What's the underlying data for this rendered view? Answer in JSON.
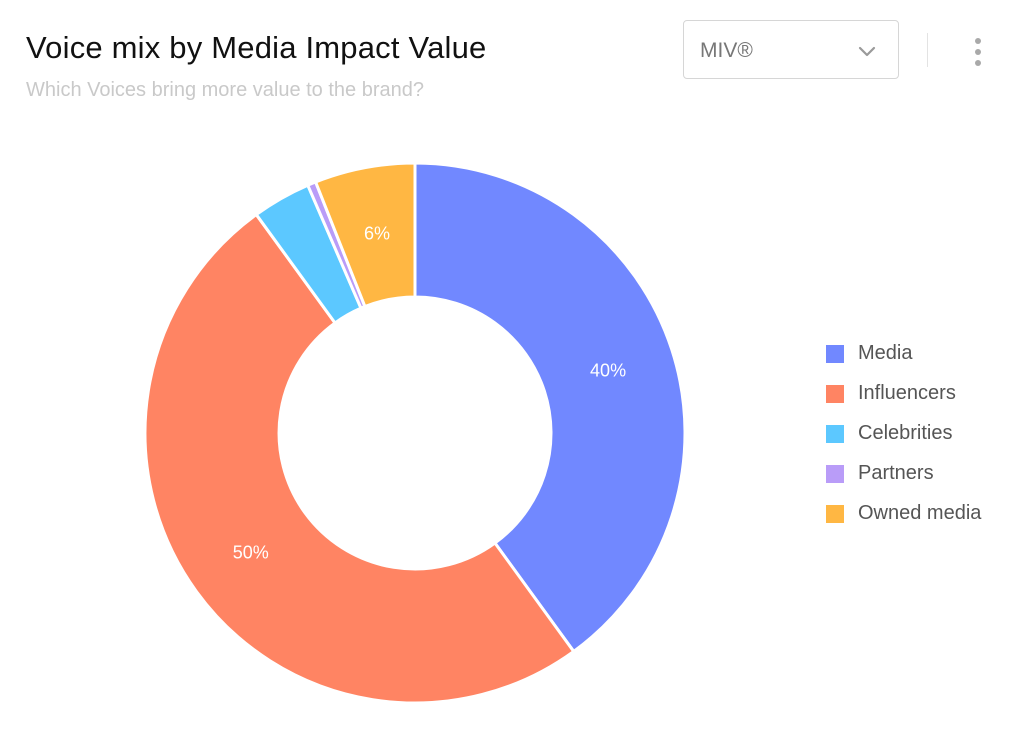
{
  "header": {
    "title": "Voice mix by Media Impact Value",
    "subtitle": "Which Voices bring more value to the brand?"
  },
  "metric_select": {
    "value": "MIV®"
  },
  "icons": {
    "dropdown": "chevron-down-icon",
    "menu": "more-vertical-icon"
  },
  "chart_data": {
    "type": "pie",
    "donut": true,
    "title": "Voice mix by Media Impact Value",
    "subtitle": "Which Voices bring more value to the brand?",
    "legend_position": "right",
    "series": [
      {
        "name": "Media",
        "value": 40,
        "label": "40%",
        "color": "#7188FF"
      },
      {
        "name": "Influencers",
        "value": 50,
        "label": "50%",
        "color": "#FF8463"
      },
      {
        "name": "Celebrities",
        "value": 3.5,
        "label": "",
        "color": "#5CC8FF"
      },
      {
        "name": "Partners",
        "value": 0.5,
        "label": "",
        "color": "#B99CF8"
      },
      {
        "name": "Owned media",
        "value": 6,
        "label": "6%",
        "color": "#FFB743"
      }
    ]
  }
}
